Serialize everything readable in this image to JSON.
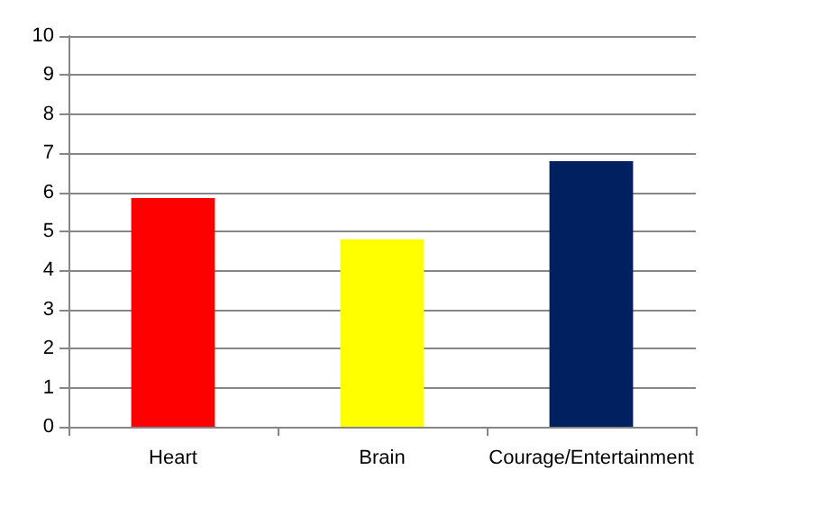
{
  "chart_data": {
    "type": "bar",
    "categories": [
      "Heart",
      "Brain",
      "Courage/Entertainment"
    ],
    "values": [
      5.85,
      4.8,
      6.8
    ],
    "colors": [
      "#ff0000",
      "#ffff00",
      "#002060"
    ],
    "ylim": [
      0,
      10
    ],
    "yticks": [
      0,
      1,
      2,
      3,
      4,
      5,
      6,
      7,
      8,
      9,
      10
    ],
    "grid": "y"
  }
}
